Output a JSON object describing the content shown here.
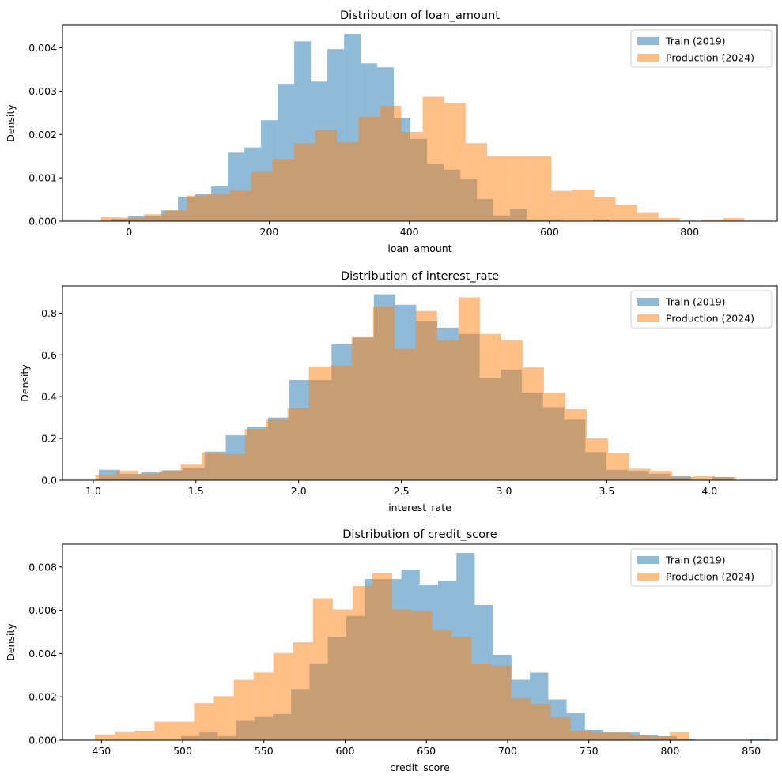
{
  "colors": {
    "train": "#1f77b4",
    "production": "#ff7f0e",
    "train_alpha": 0.5,
    "production_alpha": 0.5
  },
  "legend": {
    "items": [
      "Train (2019)",
      "Production (2024)"
    ],
    "placement": "upper right"
  },
  "chart_data": [
    {
      "type": "bar",
      "subtype": "histogram-overlay",
      "title": "Distribution of loan_amount",
      "xlabel": "loan_amount",
      "ylabel": "Density",
      "xlim": [
        -95,
        925
      ],
      "ylim": [
        0,
        0.00452
      ],
      "xticks": [
        0,
        200,
        400,
        600,
        800
      ],
      "xtick_labels": [
        "0",
        "200",
        "400",
        "600",
        "800"
      ],
      "yticks": [
        0,
        0.001,
        0.002,
        0.003,
        0.004
      ],
      "ytick_labels": [
        "0.000",
        "0.001",
        "0.002",
        "0.003",
        "0.004"
      ],
      "series": [
        {
          "name": "Train (2019)",
          "bin_start": -25,
          "bin_width": 23.7,
          "values": [
            5e-05,
            0.00012,
            0.00012,
            0.00025,
            0.00056,
            0.00062,
            0.0008,
            0.00158,
            0.0017,
            0.00233,
            0.00317,
            0.00415,
            0.00322,
            0.00397,
            0.00432,
            0.00364,
            0.00355,
            0.00238,
            0.0019,
            0.00132,
            0.00119,
            0.00097,
            0.00051,
            0.00013,
            0.00029,
            4e-05,
            4e-05,
            0.0,
            0.0,
            4e-05
          ]
        },
        {
          "name": "Production (2024)",
          "bin_start": -40,
          "bin_width": 30.6,
          "values": [
            9e-05,
            8e-05,
            0.00016,
            0.00025,
            0.00059,
            0.00063,
            0.00071,
            0.00114,
            0.00144,
            0.0018,
            0.0021,
            0.00182,
            0.00241,
            0.00266,
            0.00206,
            0.00287,
            0.00273,
            0.0018,
            0.0015,
            0.0015,
            0.0015,
            0.0007,
            0.00073,
            0.00055,
            0.00038,
            0.00019,
            7e-05,
            0.0,
            4e-05,
            7e-05
          ]
        }
      ]
    },
    {
      "type": "bar",
      "subtype": "histogram-overlay",
      "title": "Distribution of interest_rate",
      "xlabel": "interest_rate",
      "ylabel": "Density",
      "xlim": [
        0.85,
        4.33
      ],
      "ylim": [
        0,
        0.93
      ],
      "xticks": [
        1.0,
        1.5,
        2.0,
        2.5,
        3.0,
        3.5,
        4.0
      ],
      "xtick_labels": [
        "1.0",
        "1.5",
        "2.0",
        "2.5",
        "3.0",
        "3.5",
        "4.0"
      ],
      "yticks": [
        0,
        0.2,
        0.4,
        0.6,
        0.8
      ],
      "ytick_labels": [
        "0.0",
        "0.2",
        "0.4",
        "0.6",
        "0.8"
      ],
      "series": [
        {
          "name": "Train (2019)",
          "bin_start": 1.027,
          "bin_width": 0.103,
          "values": [
            0.05,
            0.03,
            0.038,
            0.048,
            0.058,
            0.137,
            0.215,
            0.255,
            0.3,
            0.48,
            0.48,
            0.65,
            0.683,
            0.89,
            0.84,
            0.76,
            0.73,
            0.7,
            0.49,
            0.53,
            0.42,
            0.35,
            0.29,
            0.135,
            0.05,
            0.045,
            0.03,
            0.02,
            0.0,
            0.015
          ]
        },
        {
          "name": "Production (2024)",
          "bin_start": 1.01,
          "bin_width": 0.104,
          "values": [
            0.027,
            0.046,
            0.03,
            0.045,
            0.075,
            0.133,
            0.125,
            0.245,
            0.29,
            0.345,
            0.545,
            0.55,
            0.685,
            0.83,
            0.63,
            0.81,
            0.67,
            0.875,
            0.7,
            0.67,
            0.54,
            0.42,
            0.34,
            0.2,
            0.13,
            0.055,
            0.045,
            0.015,
            0.02,
            0.015
          ]
        }
      ]
    },
    {
      "type": "bar",
      "subtype": "histogram-overlay",
      "title": "Distribution of credit_score",
      "xlabel": "credit_score",
      "ylabel": "Density",
      "xlim": [
        426,
        866
      ],
      "ylim": [
        0,
        0.00905
      ],
      "xticks": [
        450,
        500,
        550,
        600,
        650,
        700,
        750,
        800,
        850
      ],
      "xtick_labels": [
        "450",
        "500",
        "550",
        "600",
        "650",
        "700",
        "750",
        "800",
        "850"
      ],
      "yticks": [
        0,
        0.002,
        0.004,
        0.006,
        0.008
      ],
      "ytick_labels": [
        "0.000",
        "0.002",
        "0.004",
        "0.006",
        "0.008"
      ],
      "series": [
        {
          "name": "Train (2019)",
          "bin_start": 499,
          "bin_width": 11.3,
          "values": [
            0.00018,
            0.00036,
            0.00018,
            0.00089,
            0.00107,
            0.00121,
            0.00236,
            0.00355,
            0.00478,
            0.00574,
            0.00744,
            0.00744,
            0.00788,
            0.00719,
            0.00735,
            0.00865,
            0.00624,
            0.00394,
            0.00279,
            0.00312,
            0.00188,
            0.00124,
            0.00048,
            0.00036,
            0.00036,
            0.00024,
            0.00018,
            6e-05,
            0.0,
            0.0,
            0.0,
            6e-05
          ]
        },
        {
          "name": "Production (2024)",
          "bin_start": 446,
          "bin_width": 12.2,
          "values": [
            0.00026,
            0.00037,
            0.00044,
            0.00085,
            0.00085,
            0.00171,
            0.00203,
            0.00279,
            0.00313,
            0.00402,
            0.00452,
            0.00655,
            0.00604,
            0.00712,
            0.00772,
            0.00604,
            0.00597,
            0.00509,
            0.00477,
            0.00354,
            0.00344,
            0.00193,
            0.00168,
            0.00105,
            0.00044,
            0.00036,
            0.00036,
            0.00024,
            0.00018,
            0.00036
          ]
        }
      ]
    }
  ]
}
